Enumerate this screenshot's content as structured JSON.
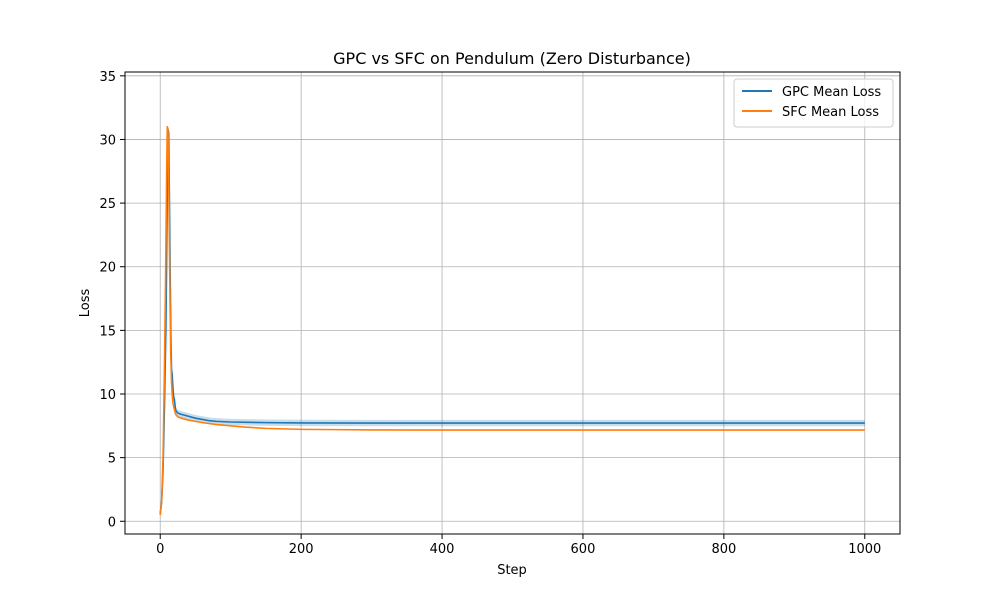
{
  "chart_data": {
    "type": "line",
    "title": "GPC vs SFC on Pendulum (Zero Disturbance)",
    "xlabel": "Step",
    "ylabel": "Loss",
    "xlim": [
      -50,
      1050
    ],
    "ylim": [
      -1,
      35.3
    ],
    "xticks": [
      0,
      200,
      400,
      600,
      800,
      1000
    ],
    "yticks": [
      0,
      5,
      10,
      15,
      20,
      25,
      30,
      35
    ],
    "grid": true,
    "legend_position": "top-right",
    "series": [
      {
        "name": "GPC Mean Loss",
        "color": "#1f77b4",
        "band": 0.25,
        "points": [
          [
            0,
            0.6
          ],
          [
            2,
            1.5
          ],
          [
            4,
            4
          ],
          [
            6,
            9
          ],
          [
            8,
            15
          ],
          [
            9,
            20
          ],
          [
            10,
            26
          ],
          [
            11,
            30.8
          ],
          [
            12,
            30.5
          ],
          [
            13,
            25.6
          ],
          [
            14,
            20
          ],
          [
            15,
            15
          ],
          [
            16,
            12
          ],
          [
            17,
            11.5
          ],
          [
            18,
            10.5
          ],
          [
            19,
            9.8
          ],
          [
            20,
            9.6
          ],
          [
            22,
            8.7
          ],
          [
            25,
            8.5
          ],
          [
            30,
            8.4
          ],
          [
            40,
            8.25
          ],
          [
            50,
            8.1
          ],
          [
            60,
            8.0
          ],
          [
            70,
            7.9
          ],
          [
            80,
            7.85
          ],
          [
            100,
            7.8
          ],
          [
            150,
            7.75
          ],
          [
            200,
            7.73
          ],
          [
            300,
            7.72
          ],
          [
            500,
            7.72
          ],
          [
            800,
            7.72
          ],
          [
            1000,
            7.72
          ]
        ]
      },
      {
        "name": "SFC Mean Loss",
        "color": "#ff7f0e",
        "band": 0,
        "points": [
          [
            0,
            0.5
          ],
          [
            2,
            1.5
          ],
          [
            4,
            5
          ],
          [
            6,
            12
          ],
          [
            8,
            21
          ],
          [
            9,
            27
          ],
          [
            10,
            31.0
          ],
          [
            11,
            30.8
          ],
          [
            12,
            27
          ],
          [
            13,
            22
          ],
          [
            14,
            17
          ],
          [
            15,
            13
          ],
          [
            16,
            11
          ],
          [
            17,
            10
          ],
          [
            18,
            9.3
          ],
          [
            20,
            8.8
          ],
          [
            22,
            8.4
          ],
          [
            25,
            8.2
          ],
          [
            30,
            8.1
          ],
          [
            40,
            7.95
          ],
          [
            50,
            7.85
          ],
          [
            60,
            7.75
          ],
          [
            80,
            7.6
          ],
          [
            100,
            7.5
          ],
          [
            120,
            7.4
          ],
          [
            150,
            7.3
          ],
          [
            200,
            7.22
          ],
          [
            250,
            7.2
          ],
          [
            300,
            7.18
          ],
          [
            400,
            7.17
          ],
          [
            600,
            7.17
          ],
          [
            800,
            7.17
          ],
          [
            1000,
            7.17
          ]
        ]
      }
    ]
  }
}
